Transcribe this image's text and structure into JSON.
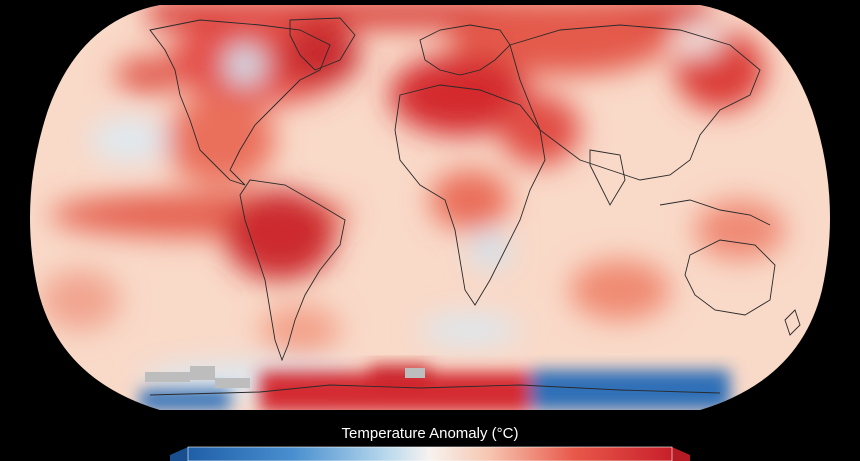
{
  "map": {
    "projection": "robinson-like",
    "background_color": "#000000",
    "ocean_base_color": "#f9d9c8",
    "coastline_color": "#2a2a2a",
    "no_data_color": "#bdbdbd",
    "anomaly_palette": {
      "deep_blue": "#1f5fa8",
      "blue": "#4a90d0",
      "light_blue": "#bfdcee",
      "near_zero": "#f7f2ef",
      "light_red": "#f6c7b2",
      "red": "#e8574a",
      "deep_red": "#c81f2a"
    }
  },
  "legend": {
    "title": "Temperature Anomaly (°C)",
    "left_arrow_color": "#1a4f8f",
    "right_arrow_color": "#b51b25"
  }
}
